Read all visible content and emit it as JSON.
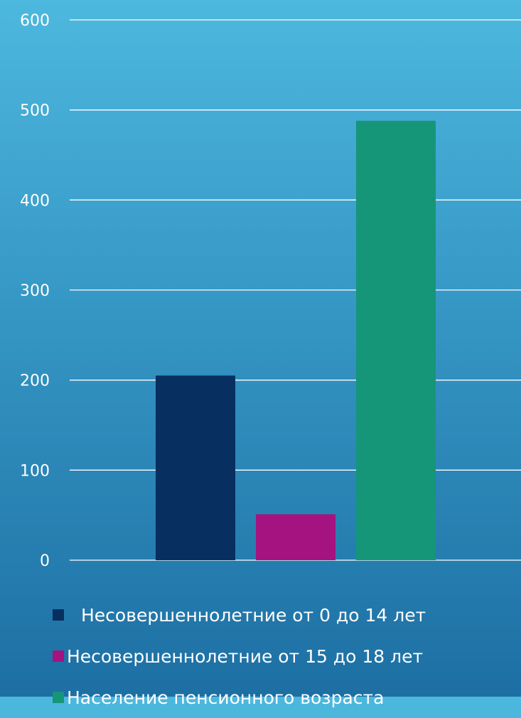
{
  "chart_data": {
    "type": "bar",
    "title": "",
    "xlabel": "",
    "ylabel": "",
    "ylim": [
      0,
      600
    ],
    "yticks": [
      0,
      100,
      200,
      300,
      400,
      500,
      600
    ],
    "grid": true,
    "legend_position": "bottom",
    "series": [
      {
        "name": "Несовершеннолетние от 0 до 14 лет",
        "value": 205,
        "color": "#072f5f"
      },
      {
        "name": "Несовершеннолетние от 15 до 18 лет",
        "value": 51,
        "color": "#a41380"
      },
      {
        "name": "Население пенсионного возраста",
        "value": 488,
        "color": "#159679"
      }
    ]
  }
}
